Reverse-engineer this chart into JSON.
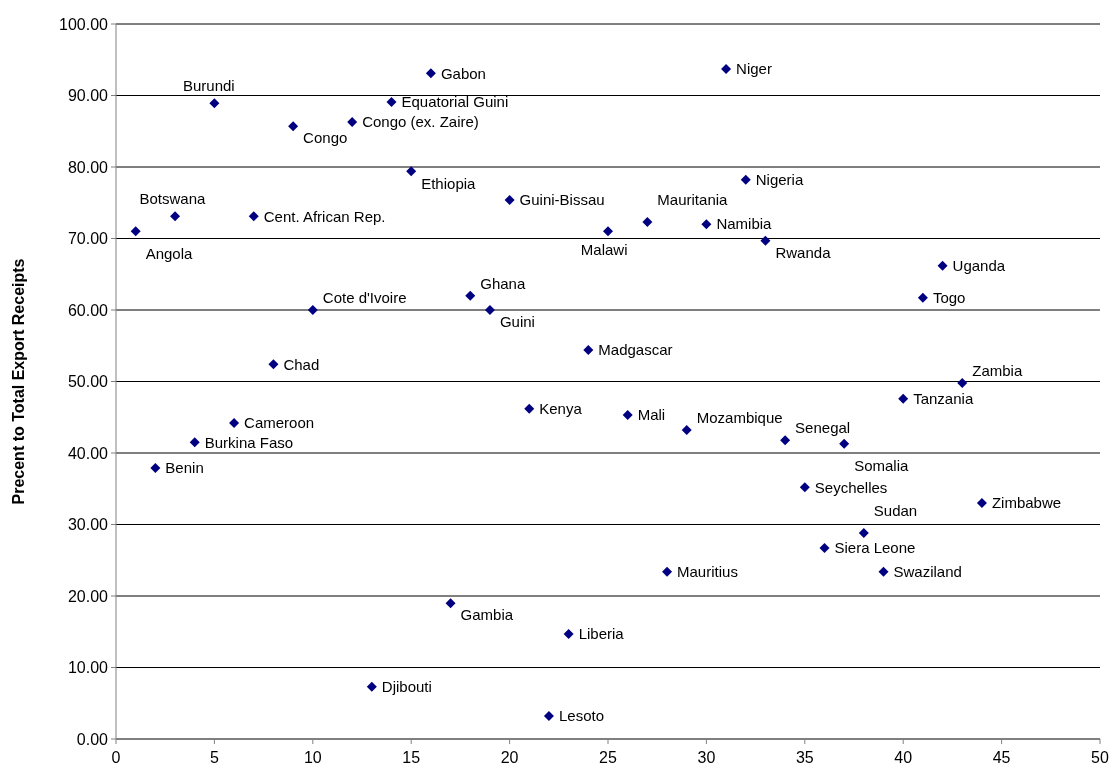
{
  "chart_data": {
    "type": "scatter",
    "ylabel": "Precent to Total Export Receipts",
    "x": [
      1,
      2,
      3,
      4,
      5,
      6,
      7,
      8,
      9,
      10,
      12,
      13,
      14,
      15,
      16,
      17,
      18,
      19,
      20,
      21,
      22,
      23,
      24,
      25,
      26,
      27,
      28,
      29,
      30,
      31,
      32,
      33,
      34,
      35,
      36,
      37,
      38,
      39,
      40,
      41,
      42,
      43,
      44
    ],
    "series": [
      {
        "color": "#000080",
        "values": [
          71.0,
          37.9,
          73.1,
          41.5,
          88.9,
          44.2,
          73.1,
          52.4,
          85.7,
          60.0,
          86.3,
          7.3,
          89.1,
          79.4,
          93.1,
          19.0,
          62.0,
          60.0,
          75.4,
          46.2,
          3.2,
          14.7,
          54.4,
          71.0,
          45.3,
          72.3,
          23.4,
          43.2,
          72.0,
          93.7,
          78.2,
          69.7,
          41.8,
          35.2,
          26.7,
          41.3,
          28.8,
          23.4,
          47.6,
          61.7,
          66.2,
          49.8,
          33.0
        ]
      }
    ],
    "annotations": [
      {
        "text": "Angola",
        "x": 1,
        "y": 71.0
      },
      {
        "text": "Benin",
        "x": 2,
        "y": 37.9
      },
      {
        "text": "Botswana",
        "x": 3,
        "y": 73.1
      },
      {
        "text": "Burkina Faso",
        "x": 4,
        "y": 41.5
      },
      {
        "text": "Burundi",
        "x": 5,
        "y": 88.9
      },
      {
        "text": "Cameroon",
        "x": 6,
        "y": 44.2
      },
      {
        "text": "Cent. African Rep.",
        "x": 7,
        "y": 73.1
      },
      {
        "text": "Chad",
        "x": 8,
        "y": 52.4
      },
      {
        "text": "Congo",
        "x": 9,
        "y": 85.7
      },
      {
        "text": "Cote d'Ivoire",
        "x": 10,
        "y": 60.0
      },
      {
        "text": "Congo (ex. Zaire)",
        "x": 12,
        "y": 86.3
      },
      {
        "text": "Djibouti",
        "x": 13,
        "y": 7.3
      },
      {
        "text": "Equatorial Guini",
        "x": 14,
        "y": 89.1
      },
      {
        "text": "Ethiopia",
        "x": 15,
        "y": 79.4
      },
      {
        "text": "Gabon",
        "x": 16,
        "y": 93.1
      },
      {
        "text": "Gambia",
        "x": 17,
        "y": 19.0
      },
      {
        "text": "Ghana",
        "x": 18,
        "y": 62.0
      },
      {
        "text": "Guini",
        "x": 19,
        "y": 60.0
      },
      {
        "text": "Guini-Bissau",
        "x": 20,
        "y": 75.4
      },
      {
        "text": "Kenya",
        "x": 21,
        "y": 46.2
      },
      {
        "text": "Lesoto",
        "x": 22,
        "y": 3.2
      },
      {
        "text": "Liberia",
        "x": 23,
        "y": 14.7
      },
      {
        "text": "Madgascar",
        "x": 24,
        "y": 54.4
      },
      {
        "text": "Malawi",
        "x": 25,
        "y": 71.0
      },
      {
        "text": "Mali",
        "x": 26,
        "y": 45.3
      },
      {
        "text": "Mauritania",
        "x": 27,
        "y": 72.3
      },
      {
        "text": "Mauritius",
        "x": 28,
        "y": 23.4
      },
      {
        "text": "Mozambique",
        "x": 29,
        "y": 43.2
      },
      {
        "text": "Namibia",
        "x": 30,
        "y": 72.0
      },
      {
        "text": "Niger",
        "x": 31,
        "y": 93.7
      },
      {
        "text": "Nigeria",
        "x": 32,
        "y": 78.2
      },
      {
        "text": "Rwanda",
        "x": 33,
        "y": 69.7
      },
      {
        "text": "Senegal",
        "x": 34,
        "y": 41.8
      },
      {
        "text": "Seychelles",
        "x": 35,
        "y": 35.2
      },
      {
        "text": "Siera Leone",
        "x": 36,
        "y": 26.7
      },
      {
        "text": "Somalia",
        "x": 37,
        "y": 41.3
      },
      {
        "text": "Sudan",
        "x": 38,
        "y": 28.8
      },
      {
        "text": "Swaziland",
        "x": 39,
        "y": 23.4
      },
      {
        "text": "Tanzania",
        "x": 40,
        "y": 47.6
      },
      {
        "text": "Togo",
        "x": 41,
        "y": 61.7
      },
      {
        "text": "Uganda",
        "x": 42,
        "y": 66.2
      },
      {
        "text": "Zambia",
        "x": 43,
        "y": 49.8
      },
      {
        "text": "Zimbabwe",
        "x": 44,
        "y": 33.0
      }
    ],
    "xlim": [
      0,
      50
    ],
    "xticks": [
      0,
      5,
      10,
      15,
      20,
      25,
      30,
      35,
      40,
      45,
      50
    ],
    "ylim": [
      0,
      100
    ],
    "yticks": [
      {
        "value": 0,
        "label": "0.00"
      },
      {
        "value": 10,
        "label": "10.00"
      },
      {
        "value": 20,
        "label": "20.00"
      },
      {
        "value": 30,
        "label": "30.00"
      },
      {
        "value": 40,
        "label": "40.00"
      },
      {
        "value": 50,
        "label": "50.00"
      },
      {
        "value": 60,
        "label": "60.00"
      },
      {
        "value": 70,
        "label": "70.00"
      },
      {
        "value": 80,
        "label": "80.00"
      },
      {
        "value": 90,
        "label": "90.00"
      },
      {
        "value": 100,
        "label": "100.00"
      }
    ],
    "grid": "y",
    "marker": "diamond"
  }
}
